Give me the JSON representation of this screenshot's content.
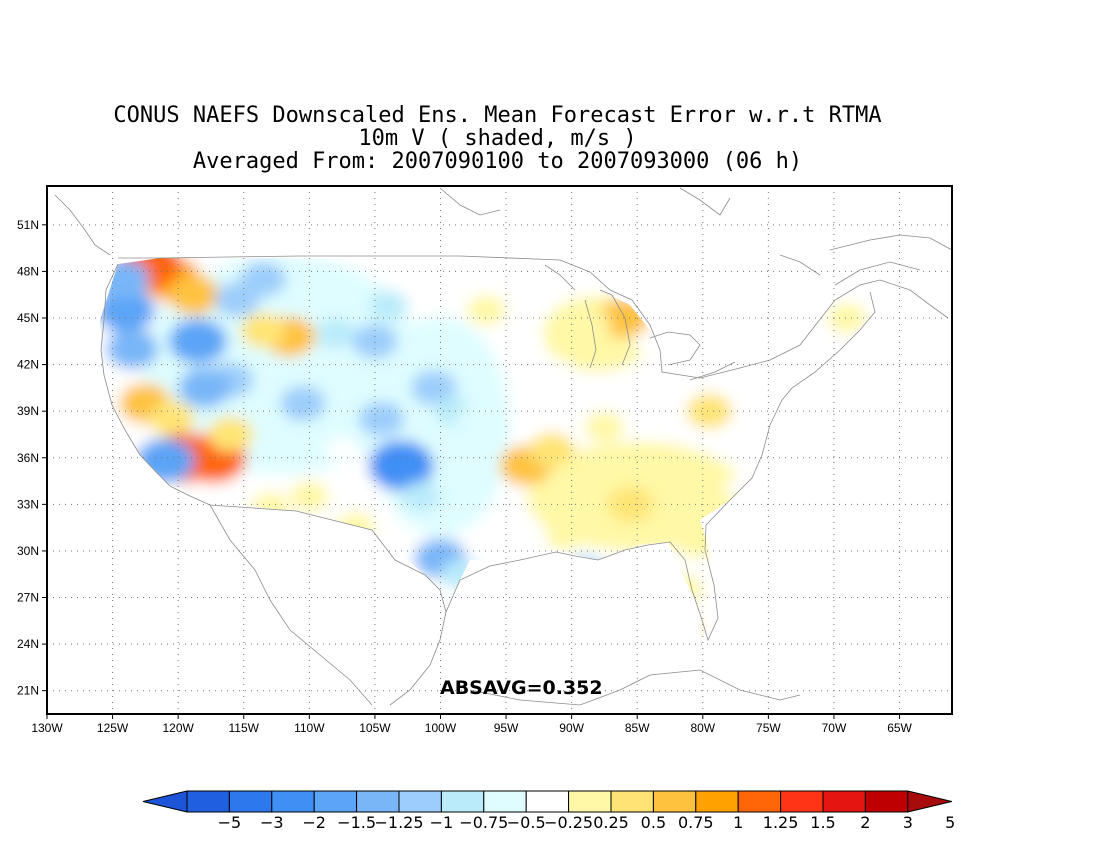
{
  "title": {
    "line1": "CONUS NAEFS Downscaled Ens. Mean Forecast Error w.r.t RTMA",
    "line2": "10m V ( shaded, m/s )",
    "line3": "Averaged From: 2007090100 to 2007093000 (06 h)"
  },
  "map": {
    "lon_range": [
      -130,
      -61
    ],
    "lat_range": [
      19.5,
      53.5
    ],
    "lon_labels": [
      "130W",
      "125W",
      "120W",
      "115W",
      "110W",
      "105W",
      "100W",
      "95W",
      "90W",
      "85W",
      "80W",
      "75W",
      "70W",
      "65W"
    ],
    "lat_labels": [
      "51N",
      "48N",
      "45N",
      "42N",
      "39N",
      "36N",
      "33N",
      "30N",
      "27N",
      "24N",
      "21N"
    ],
    "stat_text": "ABSAVG=0.352"
  },
  "colorbar": {
    "labels": [
      "-5",
      "-3",
      "-2",
      "-1.5",
      "-1.25",
      "-1",
      "-0.75",
      "-0.5",
      "-0.25",
      "0.25",
      "0.5",
      "0.75",
      "1",
      "1.25",
      "1.5",
      "2",
      "3",
      "5"
    ],
    "colors": [
      "#1f5fe0",
      "#2e78ee",
      "#3f8ff5",
      "#5ba4f7",
      "#78b6f8",
      "#9ccdfb",
      "#b9ebfa",
      "#dffdff",
      "#ffffff",
      "#fff8a6",
      "#ffe475",
      "#ffc23f",
      "#ffa100",
      "#ff6608",
      "#ff3414",
      "#e41611",
      "#be0000"
    ],
    "low_end_color": "#1d55d8",
    "high_end_color": "#a80b0b"
  },
  "anomalies": [
    {
      "lon": -120.5,
      "lat": 47.5,
      "v": 1.25
    },
    {
      "lon": -122.3,
      "lat": 48.5,
      "v": 1.5
    },
    {
      "lon": -118.8,
      "lat": 46.5,
      "v": 1.0
    },
    {
      "lon": -124.0,
      "lat": 45.5,
      "v": -1.25
    },
    {
      "lon": -123.5,
      "lat": 43.0,
      "v": -1.0
    },
    {
      "lon": -118.5,
      "lat": 43.5,
      "v": -1.25
    },
    {
      "lon": -115.5,
      "lat": 46.2,
      "v": -0.75
    },
    {
      "lon": -113.5,
      "lat": 47.5,
      "v": -0.75
    },
    {
      "lon": -111.5,
      "lat": 43.8,
      "v": 1.0
    },
    {
      "lon": -113.5,
      "lat": 44.2,
      "v": 0.75
    },
    {
      "lon": -116.0,
      "lat": 41.0,
      "v": -0.75
    },
    {
      "lon": -118.0,
      "lat": 40.5,
      "v": -1.0
    },
    {
      "lon": -122.5,
      "lat": 39.5,
      "v": 1.0
    },
    {
      "lon": -120.5,
      "lat": 38.5,
      "v": 0.75
    },
    {
      "lon": -119.5,
      "lat": 36.0,
      "v": 1.5
    },
    {
      "lon": -117.3,
      "lat": 36.0,
      "v": 1.5
    },
    {
      "lon": -121.0,
      "lat": 35.8,
      "v": -1.25
    },
    {
      "lon": -116.0,
      "lat": 37.5,
      "v": 0.75
    },
    {
      "lon": -110.5,
      "lat": 39.5,
      "v": -0.75
    },
    {
      "lon": -108.0,
      "lat": 44.0,
      "v": -0.5
    },
    {
      "lon": -105.0,
      "lat": 43.5,
      "v": -0.75
    },
    {
      "lon": -103.0,
      "lat": 35.5,
      "v": -1.5
    },
    {
      "lon": -104.5,
      "lat": 38.5,
      "v": -0.75
    },
    {
      "lon": -100.5,
      "lat": 40.5,
      "v": -0.75
    },
    {
      "lon": -99.0,
      "lat": 39.0,
      "v": -0.5
    },
    {
      "lon": -97.5,
      "lat": 38.5,
      "v": -0.25
    },
    {
      "lon": -101.5,
      "lat": 33.5,
      "v": -0.5
    },
    {
      "lon": -100.0,
      "lat": 29.5,
      "v": -1.0
    },
    {
      "lon": -98.5,
      "lat": 28.5,
      "v": -0.5
    },
    {
      "lon": -89.0,
      "lat": 28.5,
      "v": -0.75
    },
    {
      "lon": -93.5,
      "lat": 35.5,
      "v": 1.0
    },
    {
      "lon": -91.5,
      "lat": 36.5,
      "v": 0.75
    },
    {
      "lon": -87.5,
      "lat": 38.0,
      "v": 0.5
    },
    {
      "lon": -85.5,
      "lat": 33.0,
      "v": 0.75
    },
    {
      "lon": -83.0,
      "lat": 34.5,
      "v": 0.5
    },
    {
      "lon": -79.5,
      "lat": 39.0,
      "v": 0.75
    },
    {
      "lon": -77.0,
      "lat": 34.0,
      "v": 0.25
    },
    {
      "lon": -80.5,
      "lat": 30.5,
      "v": 0.5
    },
    {
      "lon": -81.5,
      "lat": 27.5,
      "v": 0.5
    },
    {
      "lon": -82.0,
      "lat": 25.0,
      "v": 0.75
    },
    {
      "lon": -86.0,
      "lat": 45.0,
      "v": 1.0
    },
    {
      "lon": -88.5,
      "lat": 44.5,
      "v": 0.5
    },
    {
      "lon": -84.0,
      "lat": 43.5,
      "v": 0.25
    },
    {
      "lon": -96.5,
      "lat": 45.5,
      "v": 0.5
    },
    {
      "lon": -94.0,
      "lat": 46.5,
      "v": 0.25
    },
    {
      "lon": -91.0,
      "lat": 41.5,
      "v": 0.25
    },
    {
      "lon": -73.0,
      "lat": 43.0,
      "v": 0.25
    },
    {
      "lon": -69.0,
      "lat": 45.0,
      "v": 0.5
    },
    {
      "lon": -75.5,
      "lat": 41.0,
      "v": 0.25
    },
    {
      "lon": -90.5,
      "lat": 31.0,
      "v": 0.5
    },
    {
      "lon": -95.5,
      "lat": 31.0,
      "v": 0.25
    },
    {
      "lon": -110.0,
      "lat": 33.5,
      "v": 0.5
    },
    {
      "lon": -106.5,
      "lat": 31.5,
      "v": 0.5
    },
    {
      "lon": -113.0,
      "lat": 32.8,
      "v": 0.5
    },
    {
      "lon": -104.0,
      "lat": 45.8,
      "v": -0.5
    },
    {
      "lon": -107.5,
      "lat": 36.5,
      "v": 0.25
    },
    {
      "lon": -124.2,
      "lat": 47.5,
      "v": -1.0
    }
  ]
}
